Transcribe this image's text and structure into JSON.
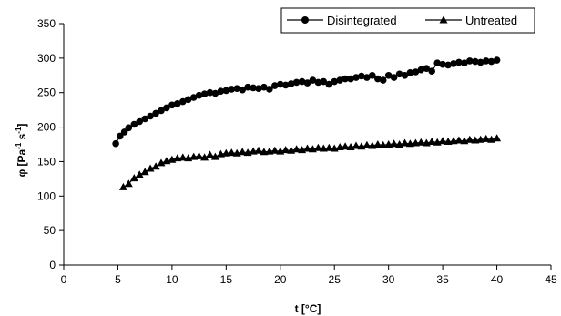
{
  "chart_data": {
    "type": "scatter",
    "xlabel": "t [°C]",
    "ylabel": {
      "base": "φ [Pa",
      "sup1": "-1",
      "mid": " s",
      "sup2": "-1",
      "end": "]"
    },
    "xlim": [
      0,
      45
    ],
    "ylim": [
      0,
      350
    ],
    "x_ticks": [
      0,
      5,
      10,
      15,
      20,
      25,
      30,
      35,
      40,
      45
    ],
    "y_ticks": [
      0,
      50,
      100,
      150,
      200,
      250,
      300,
      350
    ],
    "grid": false,
    "legend_position": "top-right",
    "series": [
      {
        "name": "Disintegrated",
        "marker": "circle",
        "color": "#000000",
        "x": [
          4.8,
          5.2,
          5.6,
          6.0,
          6.5,
          7.0,
          7.5,
          8.0,
          8.5,
          9.0,
          9.5,
          10.0,
          10.5,
          11.0,
          11.5,
          12.0,
          12.5,
          13.0,
          13.5,
          14.0,
          14.5,
          15.0,
          15.5,
          16.0,
          16.5,
          17.0,
          17.5,
          18.0,
          18.5,
          19.0,
          19.5,
          20.0,
          20.5,
          21.0,
          21.5,
          22.0,
          22.5,
          23.0,
          23.5,
          24.0,
          24.5,
          25.0,
          25.5,
          26.0,
          26.5,
          27.0,
          27.5,
          28.0,
          28.5,
          29.0,
          29.5,
          30.0,
          30.5,
          31.0,
          31.5,
          32.0,
          32.5,
          33.0,
          33.5,
          34.0,
          34.5,
          35.0,
          35.5,
          36.0,
          36.5,
          37.0,
          37.5,
          38.0,
          38.5,
          39.0,
          39.5,
          40.0
        ],
        "y": [
          176,
          187,
          193,
          199,
          204,
          208,
          212,
          216,
          220,
          224,
          228,
          232,
          234,
          237,
          240,
          243,
          246,
          248,
          250,
          249,
          252,
          253,
          255,
          256,
          254,
          258,
          257,
          256,
          258,
          255,
          260,
          262,
          261,
          263,
          265,
          266,
          264,
          268,
          265,
          266,
          262,
          266,
          268,
          270,
          270,
          272,
          274,
          272,
          275,
          270,
          268,
          275,
          272,
          277,
          275,
          279,
          280,
          283,
          285,
          281,
          293,
          291,
          290,
          292,
          294,
          293,
          296,
          295,
          294,
          296,
          295,
          297
        ]
      },
      {
        "name": "Untreated",
        "marker": "triangle",
        "color": "#000000",
        "x": [
          5.5,
          6.0,
          6.5,
          7.0,
          7.5,
          8.0,
          8.5,
          9.0,
          9.5,
          10.0,
          10.5,
          11.0,
          11.5,
          12.0,
          12.5,
          13.0,
          13.5,
          14.0,
          14.5,
          15.0,
          15.5,
          16.0,
          16.5,
          17.0,
          17.5,
          18.0,
          18.5,
          19.0,
          19.5,
          20.0,
          20.5,
          21.0,
          21.5,
          22.0,
          22.5,
          23.0,
          23.5,
          24.0,
          24.5,
          25.0,
          25.5,
          26.0,
          26.5,
          27.0,
          27.5,
          28.0,
          28.5,
          29.0,
          29.5,
          30.0,
          30.5,
          31.0,
          31.5,
          32.0,
          32.5,
          33.0,
          33.5,
          34.0,
          34.5,
          35.0,
          35.5,
          36.0,
          36.5,
          37.0,
          37.5,
          38.0,
          38.5,
          39.0,
          39.5,
          40.0
        ],
        "y": [
          113,
          118,
          126,
          131,
          135,
          140,
          143,
          148,
          151,
          153,
          155,
          156,
          155,
          157,
          158,
          156,
          160,
          157,
          161,
          162,
          163,
          162,
          164,
          163,
          165,
          166,
          164,
          165,
          166,
          165,
          167,
          166,
          168,
          167,
          169,
          168,
          170,
          169,
          170,
          169,
          171,
          172,
          171,
          173,
          172,
          174,
          173,
          175,
          174,
          175,
          176,
          175,
          177,
          176,
          177,
          178,
          177,
          179,
          178,
          180,
          179,
          180,
          181,
          180,
          182,
          181,
          182,
          183,
          182,
          184
        ]
      }
    ]
  }
}
